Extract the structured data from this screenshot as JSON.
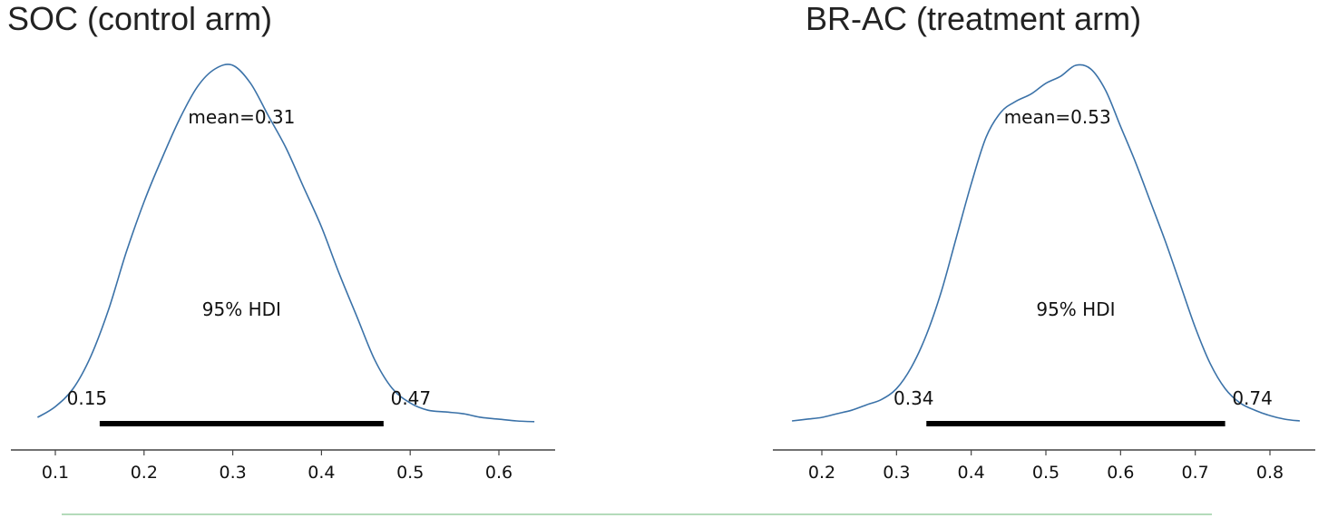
{
  "chart_data": [
    {
      "type": "line",
      "title": "SOC (control arm)",
      "xlim": [
        0.08,
        0.64
      ],
      "ticks": [
        0.1,
        0.2,
        0.3,
        0.4,
        0.5,
        0.6
      ],
      "tick_labels": [
        "0.1",
        "0.2",
        "0.3",
        "0.4",
        "0.5",
        "0.6"
      ],
      "density_x": [
        0.08,
        0.1,
        0.12,
        0.14,
        0.16,
        0.18,
        0.2,
        0.22,
        0.24,
        0.26,
        0.28,
        0.3,
        0.32,
        0.34,
        0.36,
        0.38,
        0.4,
        0.42,
        0.44,
        0.46,
        0.48,
        0.5,
        0.52,
        0.54,
        0.56,
        0.58,
        0.6,
        0.62,
        0.64
      ],
      "density_y": [
        0.02,
        0.05,
        0.1,
        0.19,
        0.32,
        0.48,
        0.62,
        0.74,
        0.85,
        0.94,
        0.99,
        1.0,
        0.95,
        0.86,
        0.77,
        0.66,
        0.55,
        0.42,
        0.3,
        0.18,
        0.1,
        0.06,
        0.04,
        0.035,
        0.03,
        0.02,
        0.015,
        0.01,
        0.008
      ],
      "mean_label": "mean=0.31",
      "hdi_label": "95% HDI",
      "hdi": [
        0.15,
        0.47
      ],
      "hdi_low_label": "0.15",
      "hdi_high_label": "0.47"
    },
    {
      "type": "line",
      "title": "BR-AC (treatment arm)",
      "xlim": [
        0.16,
        0.84
      ],
      "ticks": [
        0.2,
        0.3,
        0.4,
        0.5,
        0.6,
        0.7,
        0.8
      ],
      "tick_labels": [
        "0.2",
        "0.3",
        "0.4",
        "0.5",
        "0.6",
        "0.7",
        "0.8"
      ],
      "density_x": [
        0.16,
        0.18,
        0.2,
        0.22,
        0.24,
        0.26,
        0.28,
        0.3,
        0.32,
        0.34,
        0.36,
        0.38,
        0.4,
        0.42,
        0.44,
        0.46,
        0.48,
        0.5,
        0.52,
        0.54,
        0.56,
        0.58,
        0.6,
        0.62,
        0.64,
        0.66,
        0.68,
        0.7,
        0.72,
        0.74,
        0.76,
        0.78,
        0.8,
        0.82,
        0.84
      ],
      "density_y": [
        0.01,
        0.015,
        0.02,
        0.03,
        0.04,
        0.055,
        0.07,
        0.1,
        0.16,
        0.25,
        0.37,
        0.52,
        0.67,
        0.8,
        0.87,
        0.9,
        0.92,
        0.95,
        0.97,
        1.0,
        0.99,
        0.93,
        0.83,
        0.73,
        0.62,
        0.51,
        0.39,
        0.27,
        0.17,
        0.1,
        0.06,
        0.04,
        0.025,
        0.015,
        0.01
      ],
      "mean_label": "mean=0.53",
      "hdi_label": "95% HDI",
      "hdi": [
        0.34,
        0.74
      ],
      "hdi_low_label": "0.34",
      "hdi_high_label": "0.74"
    }
  ],
  "colors": {
    "density_line": "#3b72a8",
    "hdi_bar": "#000000",
    "divider": "#9ccfa3"
  }
}
